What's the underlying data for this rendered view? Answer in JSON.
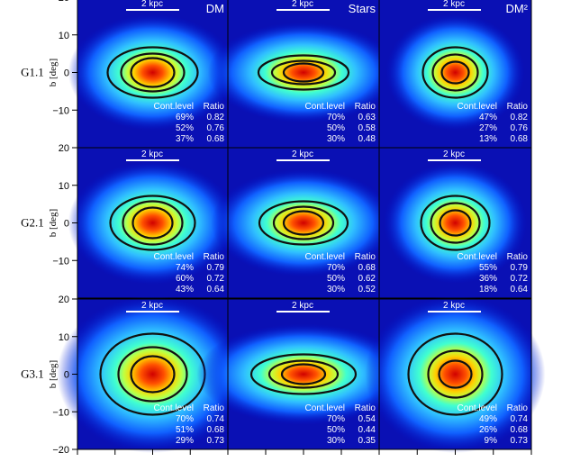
{
  "chart_data": {
    "type": "heatmap",
    "title": "",
    "ylabel": "b [deg]",
    "ylim": [
      -20,
      20
    ],
    "yticks": [
      "20",
      "10",
      "0",
      "−10",
      "−20"
    ],
    "columns": [
      "DM",
      "Stars",
      "DM²"
    ],
    "rows": [
      "G1.1",
      "G2.1",
      "G3.1"
    ],
    "scale_bar_label": "2 kpc",
    "table_headers": [
      "Cont.level",
      "Ratio"
    ],
    "panels": [
      [
        {
          "levels": [
            "69%",
            "52%",
            "37%"
          ],
          "ratios": [
            "0.82",
            "0.76",
            "0.68"
          ]
        },
        {
          "levels": [
            "70%",
            "50%",
            "30%"
          ],
          "ratios": [
            "0.63",
            "0.58",
            "0.48"
          ]
        },
        {
          "levels": [
            "47%",
            "27%",
            "13%"
          ],
          "ratios": [
            "0.82",
            "0.76",
            "0.68"
          ]
        }
      ],
      [
        {
          "levels": [
            "74%",
            "60%",
            "43%"
          ],
          "ratios": [
            "0.79",
            "0.72",
            "0.64"
          ]
        },
        {
          "levels": [
            "70%",
            "50%",
            "30%"
          ],
          "ratios": [
            "0.68",
            "0.62",
            "0.52"
          ]
        },
        {
          "levels": [
            "55%",
            "36%",
            "18%"
          ],
          "ratios": [
            "0.79",
            "0.72",
            "0.64"
          ]
        }
      ],
      [
        {
          "levels": [
            "70%",
            "51%",
            "29%"
          ],
          "ratios": [
            "0.74",
            "0.68",
            "0.73"
          ]
        },
        {
          "levels": [
            "70%",
            "50%",
            "30%"
          ],
          "ratios": [
            "0.54",
            "0.44",
            "0.35"
          ]
        },
        {
          "levels": [
            "49%",
            "26%",
            "9%"
          ],
          "ratios": [
            "0.74",
            "0.68",
            "0.73"
          ]
        }
      ]
    ],
    "colormap": [
      "#0000a0",
      "#1040ff",
      "#30c0ff",
      "#40ffd0",
      "#c0ff40",
      "#ffd000",
      "#ff5000",
      "#d00000"
    ]
  }
}
